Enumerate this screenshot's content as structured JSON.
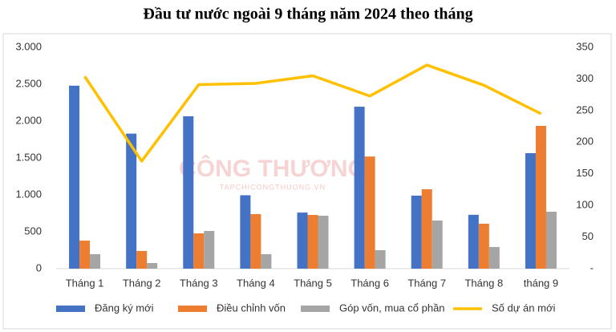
{
  "chart_data": {
    "type": "bar_line",
    "title": "Đầu tư nước ngoài 9 tháng năm 2024 theo tháng",
    "watermark": "CÔNG THƯƠNG",
    "watermark_subtitle": "TAPCHICONGTHUONG.VN",
    "categories": [
      "Tháng 1",
      "Tháng 2",
      "Tháng 3",
      "Tháng 4",
      "Tháng 5",
      "Tháng 6",
      "Tháng 7",
      "Tháng 8",
      "tháng 9"
    ],
    "series": [
      {
        "name": "Đăng ký mới",
        "type": "bar",
        "color": "#4472c4",
        "values": [
          2480,
          1830,
          2065,
          995,
          760,
          2195,
          990,
          730,
          1565
        ]
      },
      {
        "name": "Điều chỉnh vốn",
        "type": "bar",
        "color": "#ed7d31",
        "values": [
          380,
          240,
          478,
          739,
          728,
          1520,
          1076,
          609,
          1935
        ]
      },
      {
        "name": "Góp vốn, mua cổ phần",
        "type": "bar",
        "color": "#a5a5a5",
        "values": [
          196,
          76,
          511,
          196,
          717,
          250,
          652,
          293,
          772
        ]
      },
      {
        "name": "Số dự án mới",
        "type": "line",
        "axis": "y2",
        "color": "#ffc000",
        "values": [
          304,
          170,
          291,
          293,
          305,
          273,
          322,
          290,
          245
        ]
      }
    ],
    "ylim": [
      0,
      3000
    ],
    "yticks": [
      0,
      {
        "value": 500,
        "label": "500"
      },
      {
        "value": 1000,
        "label": "1.000"
      },
      {
        "value": 1500,
        "label": "1.500"
      },
      {
        "value": 2000,
        "label": "2.000"
      },
      {
        "value": 2500,
        "label": "2.500"
      },
      {
        "value": 3000,
        "label": "3.000"
      }
    ],
    "y2lim": [
      0,
      350
    ],
    "y2ticks": [
      {
        "value": 0,
        "label": "-"
      },
      50,
      100,
      150,
      200,
      250,
      300,
      350
    ],
    "grid": false,
    "legend": "bottom"
  }
}
